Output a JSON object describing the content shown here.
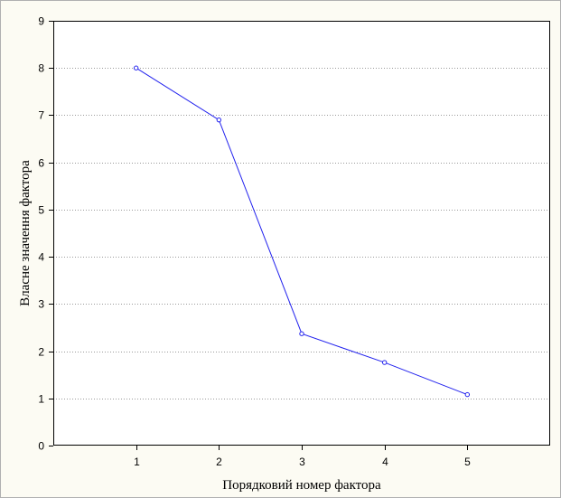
{
  "chart_data": {
    "type": "line",
    "title": "",
    "xlabel": "Порядковий номер фактора",
    "ylabel": "Власне значення фактора",
    "x": [
      1,
      2,
      3,
      4,
      5
    ],
    "series": [
      {
        "values": [
          8.0,
          6.9,
          2.37,
          1.76,
          1.08
        ]
      }
    ],
    "xlim": [
      0,
      6
    ],
    "ylim": [
      0,
      9
    ],
    "xticks": [
      "1",
      "2",
      "3",
      "4",
      "5"
    ],
    "yticks": [
      "0",
      "1",
      "2",
      "3",
      "4",
      "5",
      "6",
      "7",
      "8",
      "9"
    ],
    "grid": "horizontal-dotted",
    "line_color": "#2222ee",
    "marker": "open-circle"
  }
}
